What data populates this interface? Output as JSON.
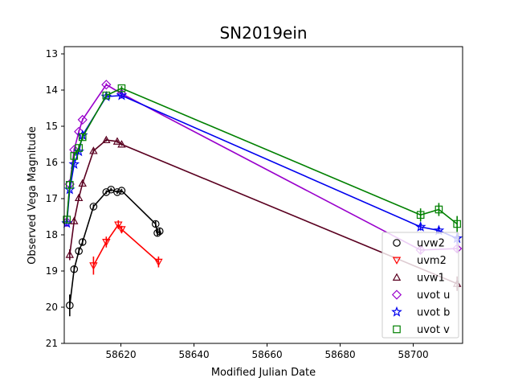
{
  "chart_data": {
    "type": "line",
    "title": "SN2019ein",
    "xlabel": "Modified Julian Date",
    "ylabel": "Observed Vega Magnitude",
    "xlim": [
      58604.5,
      58713.5
    ],
    "ylim": [
      12.8,
      21.0
    ],
    "y_inverted": true,
    "xticks": [
      "58620",
      "58640",
      "58660",
      "58680",
      "58700"
    ],
    "xtick_values": [
      58620,
      58640,
      58660,
      58680,
      58700
    ],
    "yticks": [
      "13",
      "14",
      "15",
      "16",
      "17",
      "18",
      "19",
      "20",
      "21"
    ],
    "ytick_values": [
      13,
      14,
      15,
      16,
      17,
      18,
      19,
      20,
      21
    ],
    "legend_position": "lower-right",
    "series": [
      {
        "name": "uvw2",
        "color": "#000000",
        "marker": "circle",
        "points": [
          {
            "x": 58606.0,
            "y": 19.95,
            "err": 0.3
          },
          {
            "x": 58607.2,
            "y": 18.95,
            "err": 0.1
          },
          {
            "x": 58608.5,
            "y": 18.45,
            "err": 0.08
          },
          {
            "x": 58609.5,
            "y": 18.2,
            "err": 0.08
          },
          {
            "x": 58612.5,
            "y": 17.22,
            "err": 0.06
          },
          {
            "x": 58616.0,
            "y": 16.82,
            "err": 0.05
          },
          {
            "x": 58617.3,
            "y": 16.75,
            "err": 0.05
          },
          {
            "x": 58619.0,
            "y": 16.82,
            "err": 0.05
          },
          {
            "x": 58620.2,
            "y": 16.78,
            "err": 0.05
          },
          {
            "x": 58629.5,
            "y": 17.7,
            "err": 0.08
          },
          {
            "x": 58630.0,
            "y": 17.95,
            "err": 0.08
          },
          {
            "x": 58630.6,
            "y": 17.9,
            "err": 0.08
          }
        ]
      },
      {
        "name": "uvm2",
        "color": "#ff0000",
        "marker": "triangle-down",
        "points": [
          {
            "x": 58612.5,
            "y": 18.85,
            "err": 0.25
          },
          {
            "x": 58616.0,
            "y": 18.2,
            "err": 0.15
          },
          {
            "x": 58619.3,
            "y": 17.72,
            "err": 0.12
          },
          {
            "x": 58620.2,
            "y": 17.85,
            "err": 0.1
          },
          {
            "x": 58630.3,
            "y": 18.75,
            "err": 0.15
          }
        ]
      },
      {
        "name": "uvw1",
        "color": "#5a0020",
        "marker": "triangle-up",
        "points": [
          {
            "x": 58606.0,
            "y": 18.55,
            "err": 0.15
          },
          {
            "x": 58607.2,
            "y": 17.62,
            "err": 0.08
          },
          {
            "x": 58608.5,
            "y": 16.98,
            "err": 0.06
          },
          {
            "x": 58609.5,
            "y": 16.58,
            "err": 0.05
          },
          {
            "x": 58612.5,
            "y": 15.68,
            "err": 0.05
          },
          {
            "x": 58616.0,
            "y": 15.38,
            "err": 0.04
          },
          {
            "x": 58619.0,
            "y": 15.42,
            "err": 0.04
          },
          {
            "x": 58620.2,
            "y": 15.5,
            "err": 0.04
          },
          {
            "x": 58712.0,
            "y": 19.35,
            "err": 0.2
          }
        ]
      },
      {
        "name": "uvot u",
        "color": "#9900cc",
        "marker": "diamond",
        "points": [
          {
            "x": 58605.2,
            "y": 17.65,
            "err": 0.05
          },
          {
            "x": 58606.0,
            "y": 16.6,
            "err": 0.05
          },
          {
            "x": 58607.2,
            "y": 15.65,
            "err": 0.04
          },
          {
            "x": 58608.5,
            "y": 15.15,
            "err": 0.04
          },
          {
            "x": 58609.5,
            "y": 14.82,
            "err": 0.04
          },
          {
            "x": 58616.0,
            "y": 13.85,
            "err": 0.04
          },
          {
            "x": 58620.2,
            "y": 14.1,
            "err": 0.04
          },
          {
            "x": 58702.0,
            "y": 18.42,
            "err": 0.1
          },
          {
            "x": 58712.0,
            "y": 18.38,
            "err": 0.1
          }
        ]
      },
      {
        "name": "uvot b",
        "color": "#0000ee",
        "marker": "star",
        "points": [
          {
            "x": 58605.2,
            "y": 17.68,
            "err": 0.05
          },
          {
            "x": 58606.0,
            "y": 16.75,
            "err": 0.05
          },
          {
            "x": 58607.2,
            "y": 16.05,
            "err": 0.04
          },
          {
            "x": 58608.5,
            "y": 15.7,
            "err": 0.04
          },
          {
            "x": 58609.5,
            "y": 15.25,
            "err": 0.04
          },
          {
            "x": 58616.0,
            "y": 14.18,
            "err": 0.04
          },
          {
            "x": 58620.2,
            "y": 14.15,
            "err": 0.04
          },
          {
            "x": 58702.0,
            "y": 17.78,
            "err": 0.1
          },
          {
            "x": 58707.0,
            "y": 17.88,
            "err": 0.1
          },
          {
            "x": 58712.0,
            "y": 18.1,
            "err": 0.15
          }
        ]
      },
      {
        "name": "uvot v",
        "color": "#008000",
        "marker": "square",
        "points": [
          {
            "x": 58605.2,
            "y": 17.58,
            "err": 0.1
          },
          {
            "x": 58606.0,
            "y": 16.62,
            "err": 0.08
          },
          {
            "x": 58607.2,
            "y": 15.82,
            "err": 0.08
          },
          {
            "x": 58608.5,
            "y": 15.6,
            "err": 0.08
          },
          {
            "x": 58609.5,
            "y": 15.3,
            "err": 0.08
          },
          {
            "x": 58616.0,
            "y": 14.15,
            "err": 0.06
          },
          {
            "x": 58620.2,
            "y": 13.95,
            "err": 0.06
          },
          {
            "x": 58702.0,
            "y": 17.45,
            "err": 0.18
          },
          {
            "x": 58707.0,
            "y": 17.3,
            "err": 0.18
          },
          {
            "x": 58712.0,
            "y": 17.7,
            "err": 0.22
          }
        ]
      }
    ]
  }
}
